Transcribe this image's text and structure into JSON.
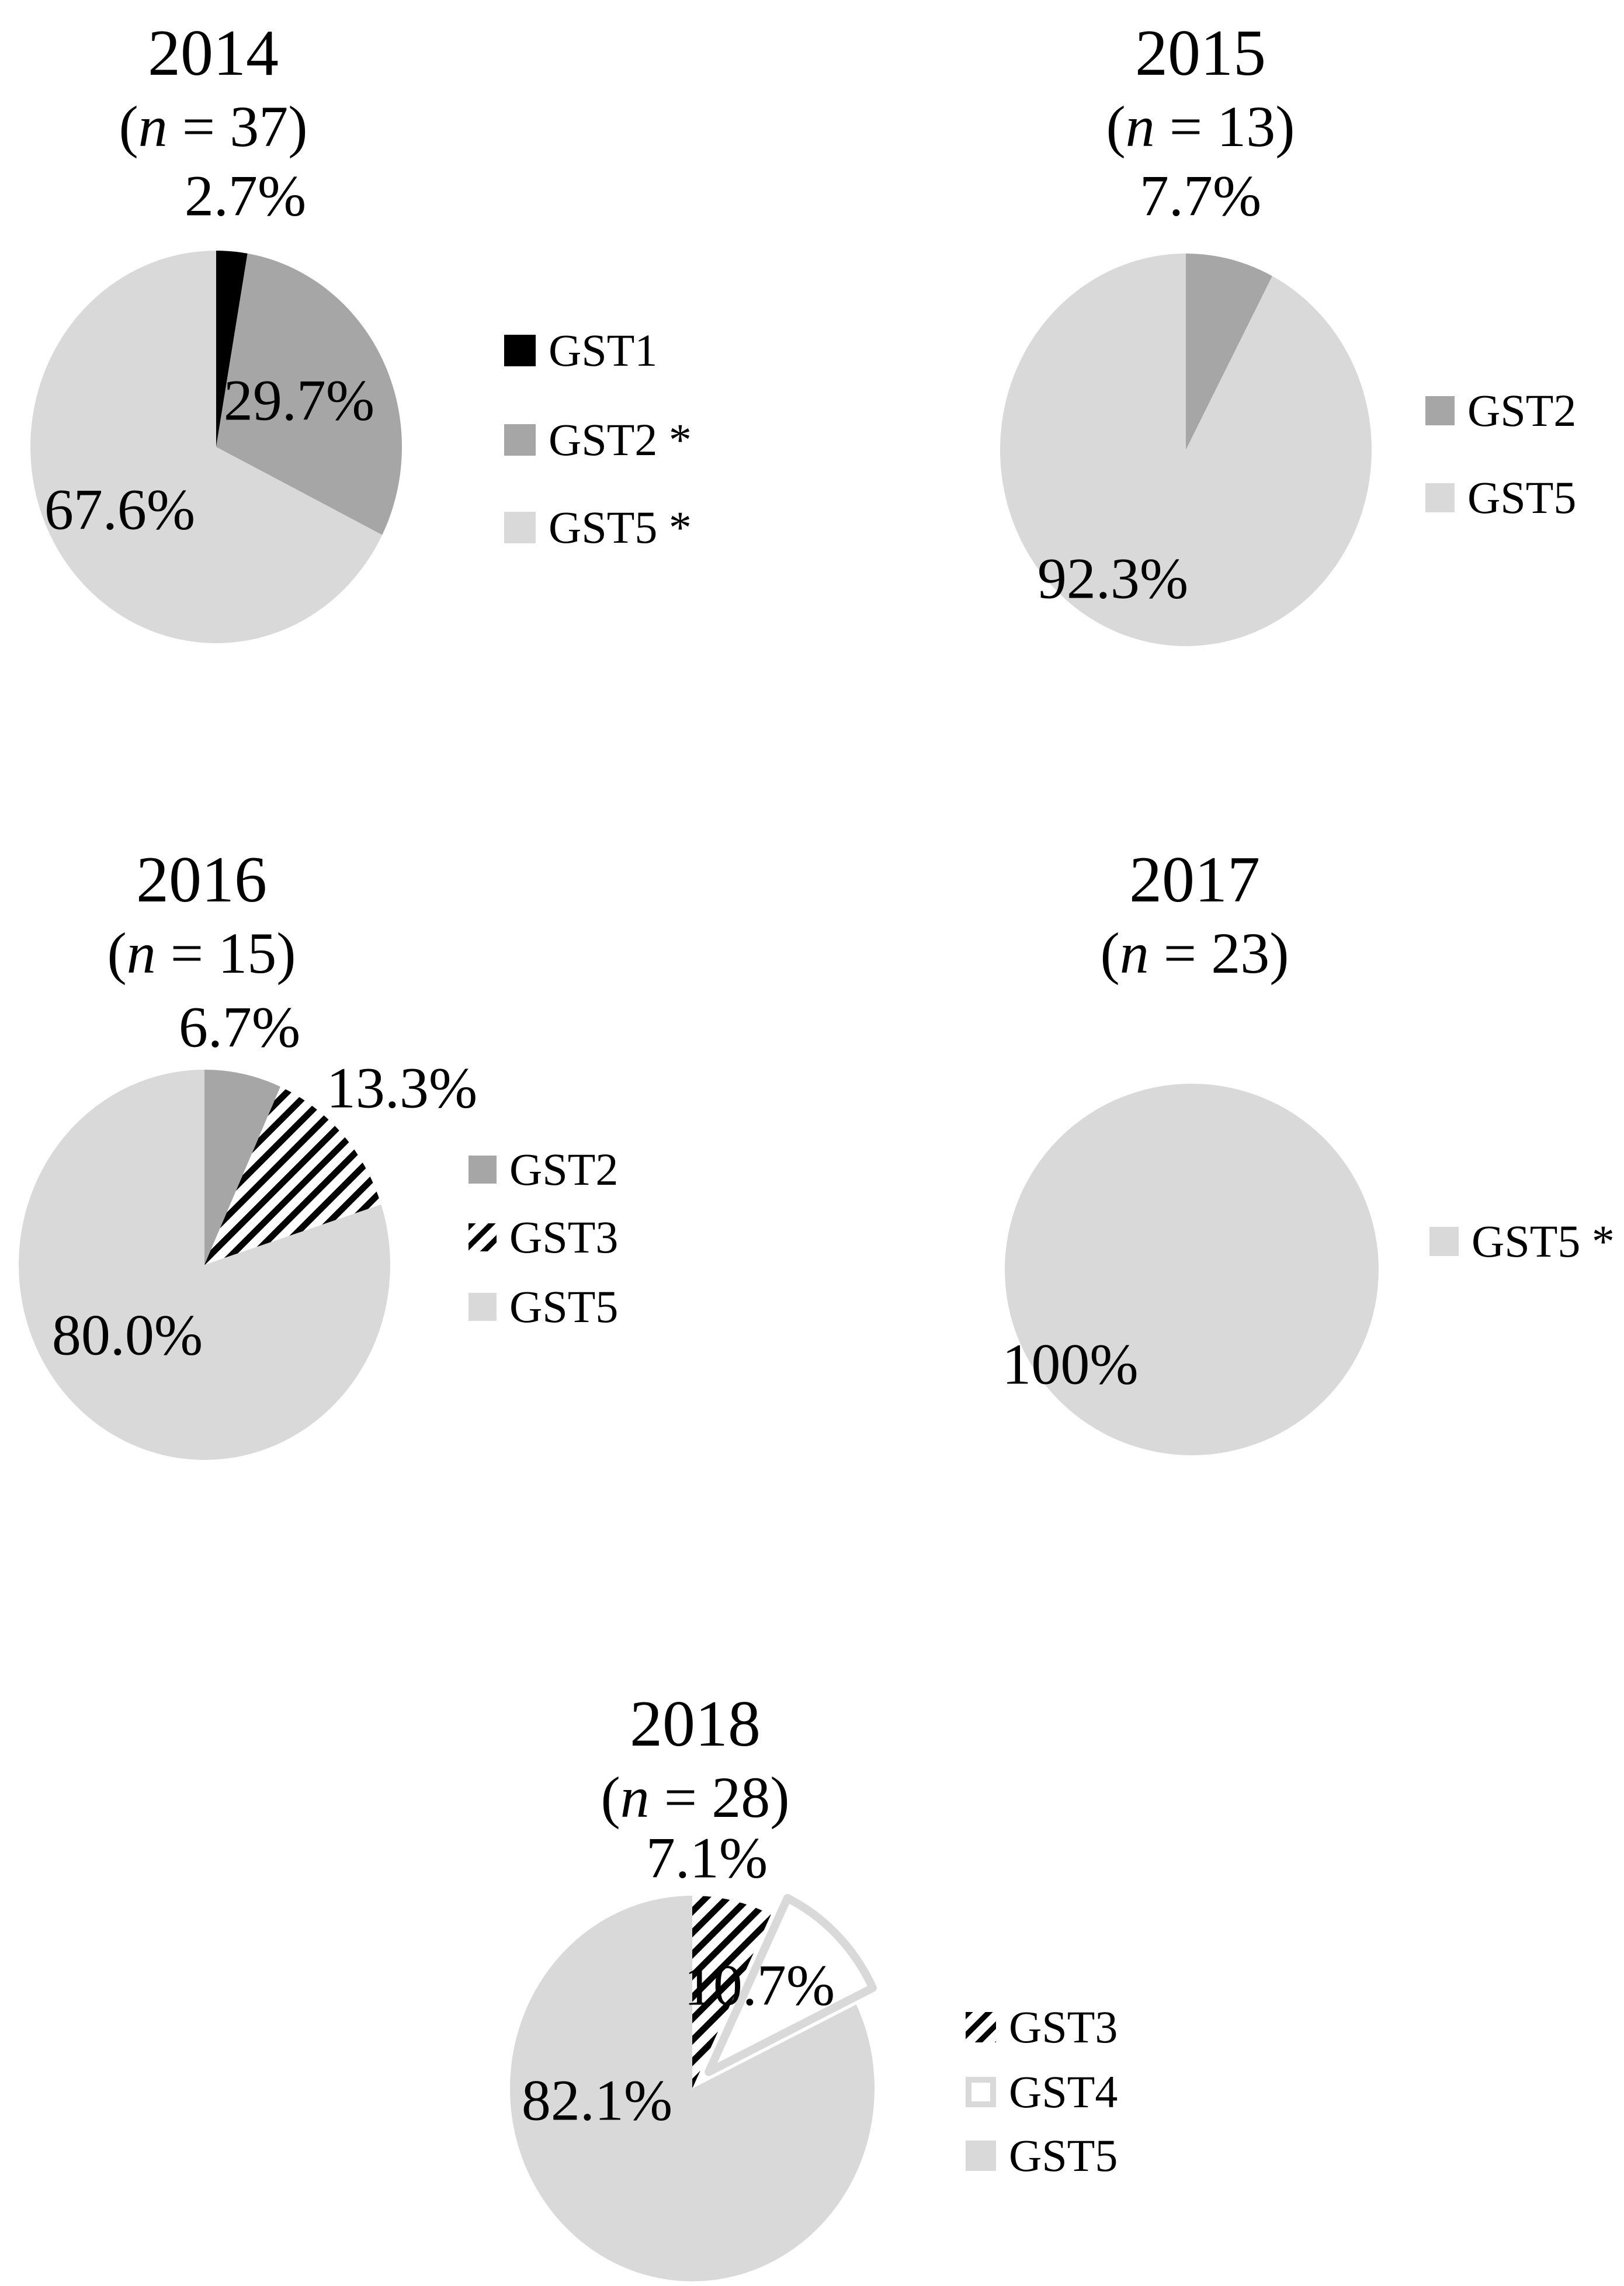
{
  "palette": {
    "GST1": "#000000",
    "GST2": "#a6a6a6",
    "GST3": "hatch",
    "GST4": "#ffffff",
    "GST5": "#d9d9d9",
    "hatch_line": "#000000",
    "gst4_border": "#d9d9d9"
  },
  "chart_data": [
    {
      "type": "pie",
      "title": "2014",
      "n": 37,
      "n_pre": "(",
      "n_var": "n",
      "n_post": " = 37)",
      "legend_position": "right",
      "slices": [
        {
          "name": "GST1",
          "value": 2.7,
          "label": "2.7%",
          "color": "GST1"
        },
        {
          "name": "GST2",
          "value": 29.7,
          "label": "29.7%",
          "color": "GST2"
        },
        {
          "name": "GST5",
          "value": 67.6,
          "label": "67.6%",
          "color": "GST5"
        }
      ],
      "legend": [
        {
          "label": "GST1",
          "color": "GST1"
        },
        {
          "label": "GST2 *",
          "color": "GST2"
        },
        {
          "label": "GST5 *",
          "color": "GST5"
        }
      ]
    },
    {
      "type": "pie",
      "title": "2015",
      "n": 13,
      "n_pre": "(",
      "n_var": "n",
      "n_post": " = 13)",
      "legend_position": "right",
      "slices": [
        {
          "name": "GST2",
          "value": 7.7,
          "label": "7.7%",
          "color": "GST2"
        },
        {
          "name": "GST5",
          "value": 92.3,
          "label": "92.3%",
          "color": "GST5"
        }
      ],
      "legend": [
        {
          "label": "GST2",
          "color": "GST2"
        },
        {
          "label": "GST5",
          "color": "GST5"
        }
      ]
    },
    {
      "type": "pie",
      "title": "2016",
      "n": 15,
      "n_pre": "(",
      "n_var": "n",
      "n_post": " = 15)",
      "legend_position": "right",
      "slices": [
        {
          "name": "GST2",
          "value": 6.7,
          "label": "6.7%",
          "color": "GST2"
        },
        {
          "name": "GST3",
          "value": 13.3,
          "label": "13.3%",
          "color": "GST3"
        },
        {
          "name": "GST5",
          "value": 80.0,
          "label": "80.0%",
          "color": "GST5"
        }
      ],
      "legend": [
        {
          "label": "GST2",
          "color": "GST2"
        },
        {
          "label": "GST3",
          "color": "GST3"
        },
        {
          "label": "GST5",
          "color": "GST5"
        }
      ]
    },
    {
      "type": "pie",
      "title": "2017",
      "n": 23,
      "n_pre": "(",
      "n_var": "n",
      "n_post": " = 23)",
      "legend_position": "right",
      "slices": [
        {
          "name": "GST5",
          "value": 100,
          "label": "100%",
          "color": "GST5"
        }
      ],
      "legend": [
        {
          "label": "GST5 *",
          "color": "GST5"
        }
      ]
    },
    {
      "type": "pie",
      "title": "2018",
      "n": 28,
      "n_pre": "(",
      "n_var": "n",
      "n_post": " = 28)",
      "legend_position": "right",
      "slices": [
        {
          "name": "GST3",
          "value": 7.1,
          "label": "7.1%",
          "color": "GST3"
        },
        {
          "name": "GST4",
          "value": 10.7,
          "label": "10.7%",
          "color": "GST4",
          "exploded": true
        },
        {
          "name": "GST5",
          "value": 82.1,
          "label": "82.1%",
          "color": "GST5"
        }
      ],
      "legend": [
        {
          "label": "GST3",
          "color": "GST3"
        },
        {
          "label": "GST4",
          "color": "GST4"
        },
        {
          "label": "GST5",
          "color": "GST5"
        }
      ]
    }
  ]
}
